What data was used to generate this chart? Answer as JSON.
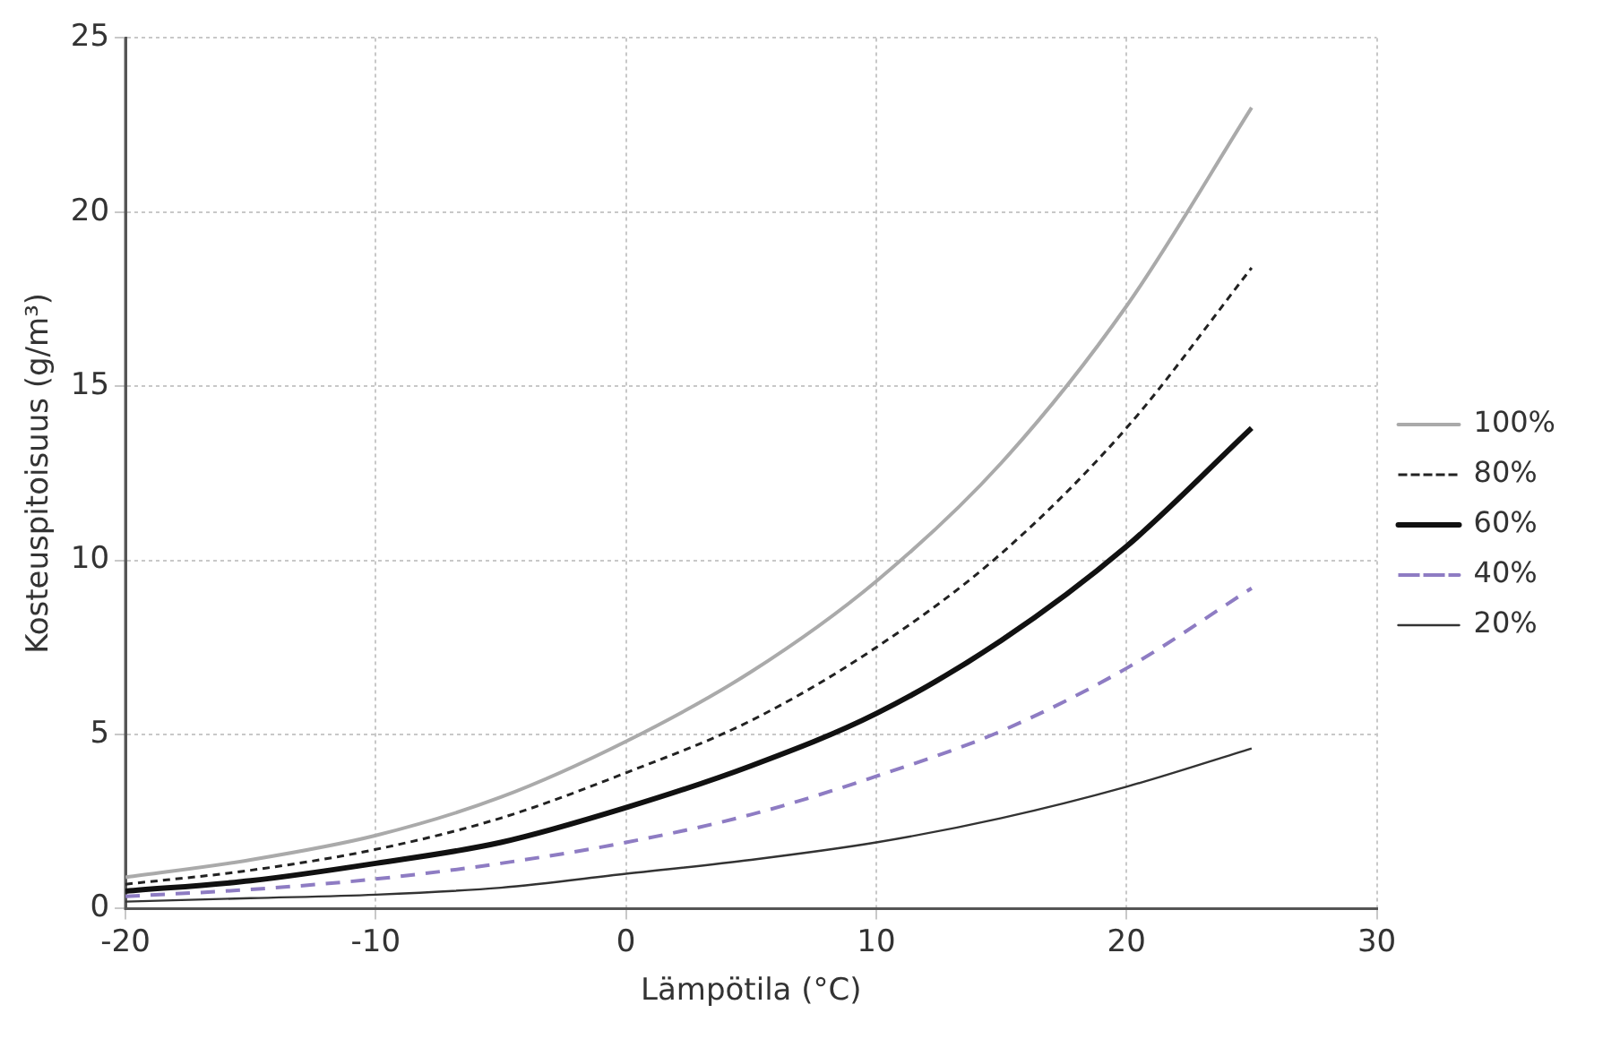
{
  "chart_data": {
    "type": "line",
    "xlabel": "Lämpötila (°C)",
    "ylabel": "Kosteuspitoisuus (g/m³)",
    "x": [
      -20,
      -15,
      -10,
      -5,
      0,
      5,
      10,
      15,
      20,
      25
    ],
    "series": [
      {
        "name": "100%",
        "color": "#aaaaaa",
        "line_style": "solid",
        "values": [
          0.9,
          1.4,
          2.1,
          3.2,
          4.8,
          6.8,
          9.4,
          12.8,
          17.3,
          23.0
        ]
      },
      {
        "name": "80%",
        "color": "#222222",
        "line_style": "dashed",
        "values": [
          0.7,
          1.1,
          1.7,
          2.6,
          3.9,
          5.4,
          7.5,
          10.2,
          13.8,
          18.4
        ]
      },
      {
        "name": "60%",
        "color": "#111111",
        "line_style": "solid",
        "values": [
          0.5,
          0.8,
          1.3,
          1.9,
          2.9,
          4.1,
          5.6,
          7.7,
          10.4,
          13.8
        ]
      },
      {
        "name": "40%",
        "color": "#8e7cc3",
        "line_style": "dashed",
        "values": [
          0.35,
          0.55,
          0.85,
          1.3,
          1.9,
          2.7,
          3.8,
          5.1,
          6.9,
          9.2
        ]
      },
      {
        "name": "20%",
        "color": "#333333",
        "line_style": "solid",
        "values": [
          0.2,
          0.3,
          0.4,
          0.6,
          1.0,
          1.4,
          1.9,
          2.6,
          3.5,
          4.6
        ]
      }
    ],
    "xlim": [
      -20,
      30
    ],
    "xticks": [
      -20,
      -10,
      0,
      10,
      20,
      30
    ],
    "ylim": [
      0,
      25
    ],
    "yticks": [
      0,
      5,
      10,
      15,
      20,
      25
    ],
    "grid": true,
    "legend": "right",
    "marker": "none"
  }
}
